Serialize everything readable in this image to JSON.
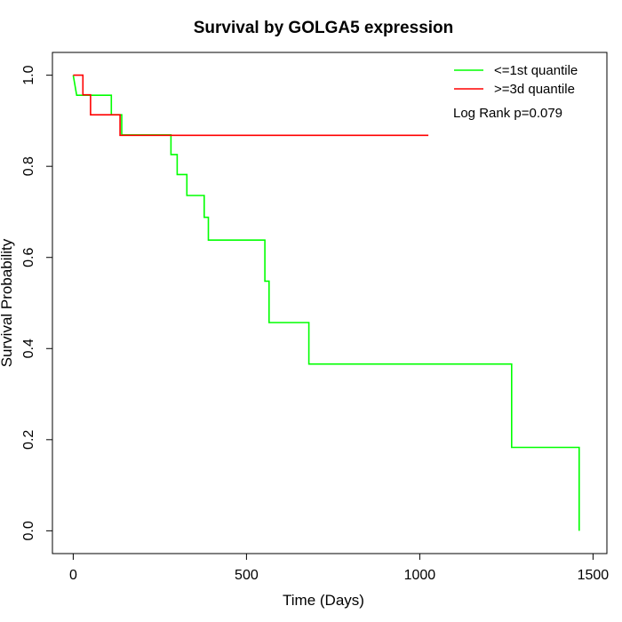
{
  "chart_data": {
    "type": "line",
    "title": "Survival by GOLGA5 expression",
    "xlabel": "Time (Days)",
    "ylabel": "Survival Probability",
    "xlim": [
      -60,
      1540
    ],
    "ylim": [
      -0.05,
      1.05
    ],
    "x_ticks": [
      0,
      500,
      1000,
      1500
    ],
    "x_tick_labels": [
      "0",
      "500",
      "1000",
      "1500"
    ],
    "y_ticks": [
      0.0,
      0.2,
      0.4,
      0.6,
      0.8,
      1.0
    ],
    "y_tick_labels": [
      "0.0",
      "0.2",
      "0.4",
      "0.6",
      "0.8",
      "1.0"
    ],
    "grid": false,
    "legend_position": "top-right",
    "annotation": "Log Rank p=0.079",
    "series": [
      {
        "name": "<=1st quantile",
        "color": "#00ff00",
        "steps": [
          [
            0,
            1.0
          ],
          [
            10,
            0.956
          ],
          [
            110,
            0.956
          ],
          [
            110,
            0.913
          ],
          [
            140,
            0.913
          ],
          [
            140,
            0.869
          ],
          [
            282,
            0.869
          ],
          [
            282,
            0.826
          ],
          [
            300,
            0.826
          ],
          [
            300,
            0.782
          ],
          [
            328,
            0.782
          ],
          [
            328,
            0.736
          ],
          [
            378,
            0.736
          ],
          [
            378,
            0.688
          ],
          [
            390,
            0.688
          ],
          [
            390,
            0.638
          ],
          [
            553,
            0.638
          ],
          [
            553,
            0.548
          ],
          [
            565,
            0.548
          ],
          [
            565,
            0.457
          ],
          [
            680,
            0.457
          ],
          [
            680,
            0.366
          ],
          [
            1265,
            0.366
          ],
          [
            1265,
            0.183
          ],
          [
            1460,
            0.183
          ],
          [
            1460,
            0.0
          ]
        ]
      },
      {
        "name": ">=3d quantile",
        "color": "#ff0000",
        "steps": [
          [
            0,
            1.0
          ],
          [
            28,
            1.0
          ],
          [
            28,
            0.957
          ],
          [
            50,
            0.957
          ],
          [
            50,
            0.913
          ],
          [
            135,
            0.913
          ],
          [
            135,
            0.868
          ],
          [
            1025,
            0.868
          ]
        ]
      }
    ]
  }
}
